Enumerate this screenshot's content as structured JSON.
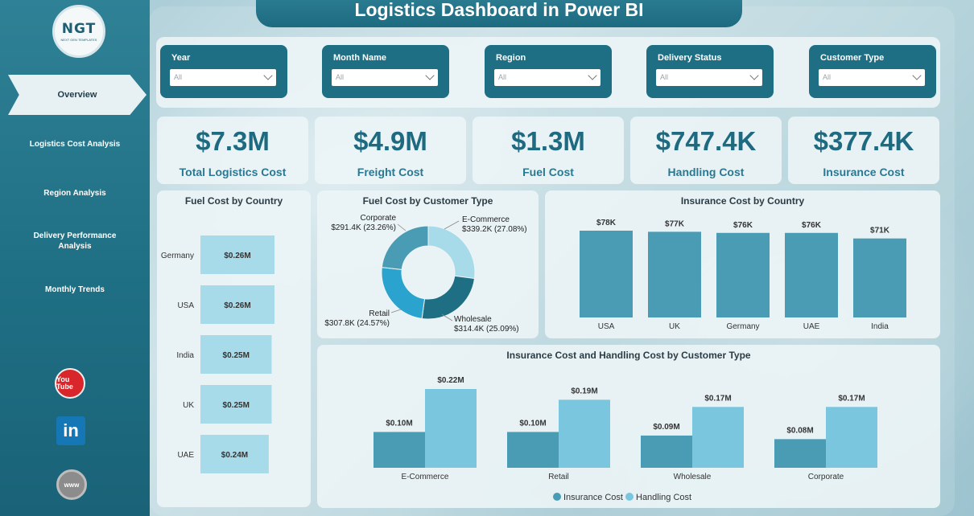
{
  "title": "Logistics Dashboard in Power BI",
  "logo": {
    "text": "NGT",
    "sub": "NEXT GEN TEMPLATES"
  },
  "nav": {
    "active": "Overview",
    "items": [
      "Logistics Cost Analysis",
      "Region Analysis",
      "Delivery Performance Analysis",
      "Monthly Trends"
    ]
  },
  "social": {
    "youtube": "You Tube",
    "linkedin": "in",
    "web": "www"
  },
  "filters": [
    {
      "label": "Year",
      "value": "All"
    },
    {
      "label": "Month Name",
      "value": "All"
    },
    {
      "label": "Region",
      "value": "All"
    },
    {
      "label": "Delivery Status",
      "value": "All"
    },
    {
      "label": "Customer Type",
      "value": "All"
    }
  ],
  "kpis": [
    {
      "value": "$7.3M",
      "label": "Total Logistics Cost"
    },
    {
      "value": "$4.9M",
      "label": "Freight Cost"
    },
    {
      "value": "$1.3M",
      "label": "Fuel Cost"
    },
    {
      "value": "$747.4K",
      "label": "Handling Cost"
    },
    {
      "value": "$377.4K",
      "label": "Insurance Cost"
    }
  ],
  "colors": {
    "accent": "#1e6e84",
    "bar_light": "#a7dbe9",
    "bar_teal": "#4a9bb4",
    "bar_sky": "#7ac6df",
    "donut_dark": "#1f6f84"
  },
  "chart_data": [
    {
      "type": "bar",
      "orientation": "horizontal",
      "title": "Fuel Cost by Country",
      "categories": [
        "Germany",
        "USA",
        "India",
        "UK",
        "UAE"
      ],
      "values": [
        0.26,
        0.26,
        0.25,
        0.25,
        0.24
      ],
      "labels": [
        "$0.26M",
        "$0.26M",
        "$0.25M",
        "$0.25M",
        "$0.24M"
      ]
    },
    {
      "type": "pie",
      "donut": true,
      "title": "Fuel Cost by Customer Type",
      "slices": [
        {
          "name": "E-Commerce",
          "value": 339.2,
          "label": "$339.2K (27.08%)",
          "color": "#a7dbe9"
        },
        {
          "name": "Wholesale",
          "value": 314.4,
          "label": "$314.4K (25.09%)",
          "color": "#1f6f84"
        },
        {
          "name": "Retail",
          "value": 307.8,
          "label": "$307.8K (24.57%)",
          "color": "#2aa3cf"
        },
        {
          "name": "Corporate",
          "value": 291.4,
          "label": "$291.4K (23.26%)",
          "color": "#4a9bb4"
        }
      ]
    },
    {
      "type": "bar",
      "title": "Insurance Cost by Country",
      "categories": [
        "USA",
        "UK",
        "Germany",
        "UAE",
        "India"
      ],
      "values": [
        78,
        77,
        76,
        76,
        71
      ],
      "labels": [
        "$78K",
        "$77K",
        "$76K",
        "$76K",
        "$71K"
      ]
    },
    {
      "type": "bar",
      "title": "Insurance Cost and Handling Cost by Customer Type",
      "categories": [
        "E-Commerce",
        "Retail",
        "Wholesale",
        "Corporate"
      ],
      "series": [
        {
          "name": "Insurance Cost",
          "values": [
            0.1,
            0.1,
            0.09,
            0.08
          ],
          "labels": [
            "$0.10M",
            "$0.10M",
            "$0.09M",
            "$0.08M"
          ],
          "color": "#4a9bb4"
        },
        {
          "name": "Handling Cost",
          "values": [
            0.22,
            0.19,
            0.17,
            0.17
          ],
          "labels": [
            "$0.22M",
            "$0.19M",
            "$0.17M",
            "$0.17M"
          ],
          "color": "#7ac6df"
        }
      ],
      "legend": "bottom-center"
    }
  ]
}
